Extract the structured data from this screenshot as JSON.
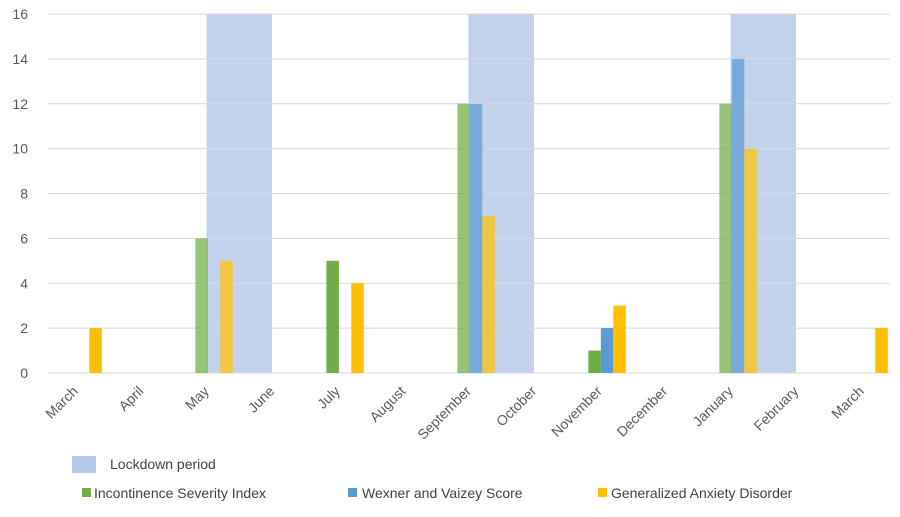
{
  "chart_data": {
    "type": "bar",
    "title": "",
    "xlabel": "",
    "ylabel": "",
    "ylim": [
      0,
      16
    ],
    "yticks": [
      0,
      2,
      4,
      6,
      8,
      10,
      12,
      14,
      16
    ],
    "categories": [
      "March",
      "April",
      "May",
      "June",
      "July",
      "August",
      "September",
      "October",
      "November",
      "December",
      "January",
      "February",
      "March"
    ],
    "series": [
      {
        "name": "Incontinence Severity Index",
        "color": "#70ad47",
        "values": [
          null,
          null,
          6,
          null,
          5,
          null,
          12,
          null,
          1,
          null,
          12,
          null,
          null
        ]
      },
      {
        "name": "Wexner and Vaizey Score",
        "color": "#5b9bd5",
        "values": [
          null,
          null,
          null,
          null,
          null,
          null,
          12,
          null,
          2,
          null,
          14,
          null,
          null
        ]
      },
      {
        "name": "Generalized Anxiety Disorder",
        "color": "#ffc000",
        "values": [
          2,
          null,
          5,
          null,
          4,
          null,
          7,
          null,
          3,
          null,
          10,
          null,
          2
        ]
      }
    ],
    "lockdown": {
      "label": "Lockdown period",
      "color": "#b4c7e7",
      "periods": [
        [
          2,
          2
        ],
        [
          6,
          6
        ],
        [
          10,
          10
        ]
      ]
    },
    "grid": true,
    "legend_position": "bottom"
  }
}
